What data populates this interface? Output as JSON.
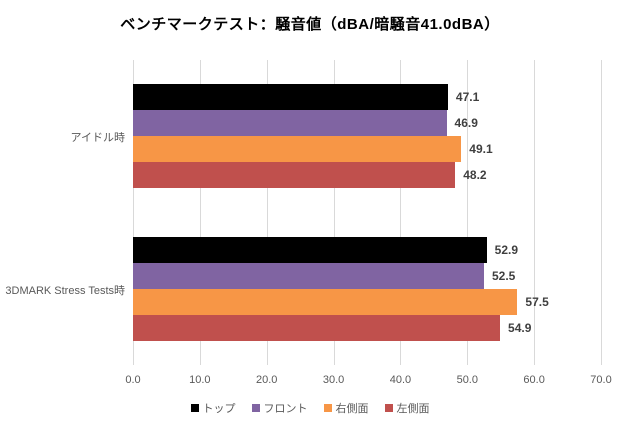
{
  "title": "ベンチマークテスト：騒音値（dBA/暗騒音41.0dBA）",
  "chart_data": {
    "type": "bar",
    "orientation": "horizontal",
    "title": "ベンチマークテスト：騒音値（dBA/暗騒音41.0dBA）",
    "categories": [
      "アイドル時",
      "3DMARK Stress Tests時"
    ],
    "series": [
      {
        "name": "トップ",
        "color": "#000000",
        "values": [
          47.1,
          52.9
        ]
      },
      {
        "name": "フロント",
        "color": "#8064A2",
        "values": [
          46.9,
          52.5
        ]
      },
      {
        "name": "右側面",
        "color": "#F79646",
        "values": [
          49.1,
          57.5
        ]
      },
      {
        "name": "左側面",
        "color": "#C0504D",
        "values": [
          48.2,
          54.9
        ]
      }
    ],
    "xlabel": "",
    "ylabel": "",
    "xlim": [
      0,
      70
    ],
    "xticks": [
      "0.0",
      "10.0",
      "20.0",
      "30.0",
      "40.0",
      "50.0",
      "60.0",
      "70.0"
    ],
    "grid": true,
    "value_labels": true,
    "legend_position": "bottom"
  },
  "colors": {
    "background": "#ffffff",
    "gridline": "#d9d9d9",
    "axis_text": "#595959",
    "value_label_text": "#3f3f3f",
    "title_text": "#000000"
  }
}
